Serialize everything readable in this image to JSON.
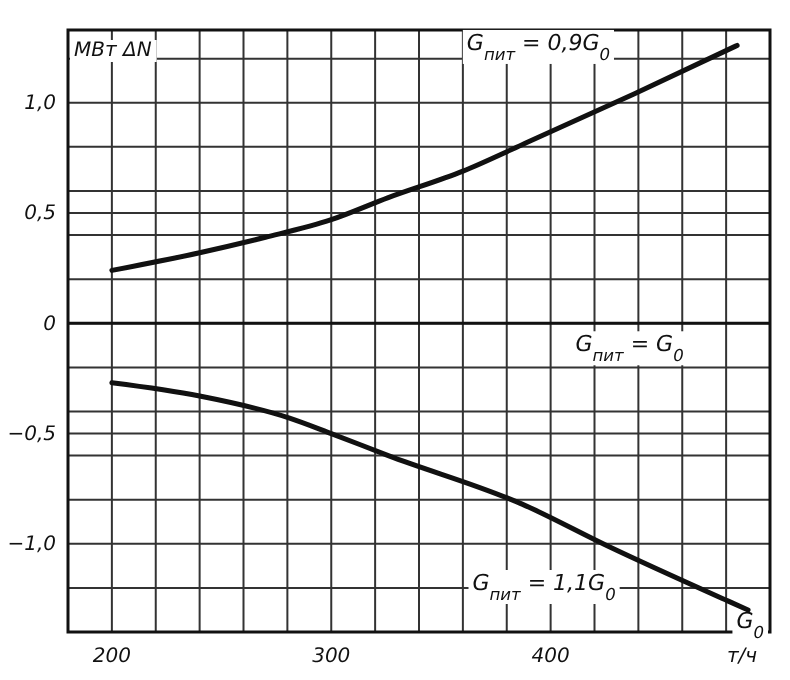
{
  "chart_data": {
    "type": "line",
    "ylabel": "МВт ΔN",
    "xlabel": "т/ч",
    "xlim": [
      180,
      500
    ],
    "ylim": [
      -1.4,
      1.33
    ],
    "xticks": [
      {
        "value": 180,
        "label": null
      },
      200,
      {
        "value": 220,
        "label": null
      },
      {
        "value": 240,
        "label": null
      },
      {
        "value": 260,
        "label": null
      },
      {
        "value": 280,
        "label": null
      },
      300,
      {
        "value": 320,
        "label": null
      },
      {
        "value": 340,
        "label": null
      },
      {
        "value": 360,
        "label": null
      },
      {
        "value": 380,
        "label": null
      },
      400,
      {
        "value": 420,
        "label": null
      },
      {
        "value": 440,
        "label": null
      },
      {
        "value": 460,
        "label": null
      },
      {
        "value": 480,
        "label": null
      }
    ],
    "yticks": [
      {
        "value": -1.2,
        "label": null
      },
      {
        "value": -1.0,
        "label": "−1,0"
      },
      {
        "value": -0.8,
        "label": null
      },
      {
        "value": -0.6,
        "label": null
      },
      {
        "value": -0.5,
        "label": "−0,5"
      },
      {
        "value": -0.4,
        "label": null
      },
      {
        "value": -0.2,
        "label": null
      },
      0,
      {
        "value": 0.2,
        "label": null
      },
      {
        "value": 0.4,
        "label": null
      },
      {
        "value": 0.5,
        "label": "0,5"
      },
      {
        "value": 0.6,
        "label": null
      },
      {
        "value": 0.8,
        "label": null
      },
      {
        "value": 1.0,
        "label": "1,0"
      },
      {
        "value": 1.2,
        "label": null
      }
    ],
    "grid": true,
    "series": [
      {
        "name": "G$_{пит}$ = 0,9G$_{0}$",
        "color": "#111111",
        "x": [
          200,
          240,
          270,
          300,
          326,
          360,
          387,
          438,
          485
        ],
        "values": [
          0.24,
          0.32,
          0.39,
          0.47,
          0.57,
          0.69,
          0.81,
          1.04,
          1.26
        ]
      },
      {
        "name": "G$_{пит}$ = 1,1G$_{0}$",
        "color": "#111111",
        "x": [
          200,
          240,
          281,
          300,
          326,
          387,
          426,
          481,
          490
        ],
        "values": [
          -0.27,
          -0.33,
          -0.43,
          -0.5,
          -0.6,
          -0.82,
          -1.01,
          -1.26,
          -1.3
        ]
      }
    ],
    "ref_lines": [
      {
        "axis": "y",
        "value": 0,
        "label": "G$_{пит}$ = G$_{0}$"
      }
    ],
    "annotations": [
      "G$_{0}$"
    ]
  }
}
